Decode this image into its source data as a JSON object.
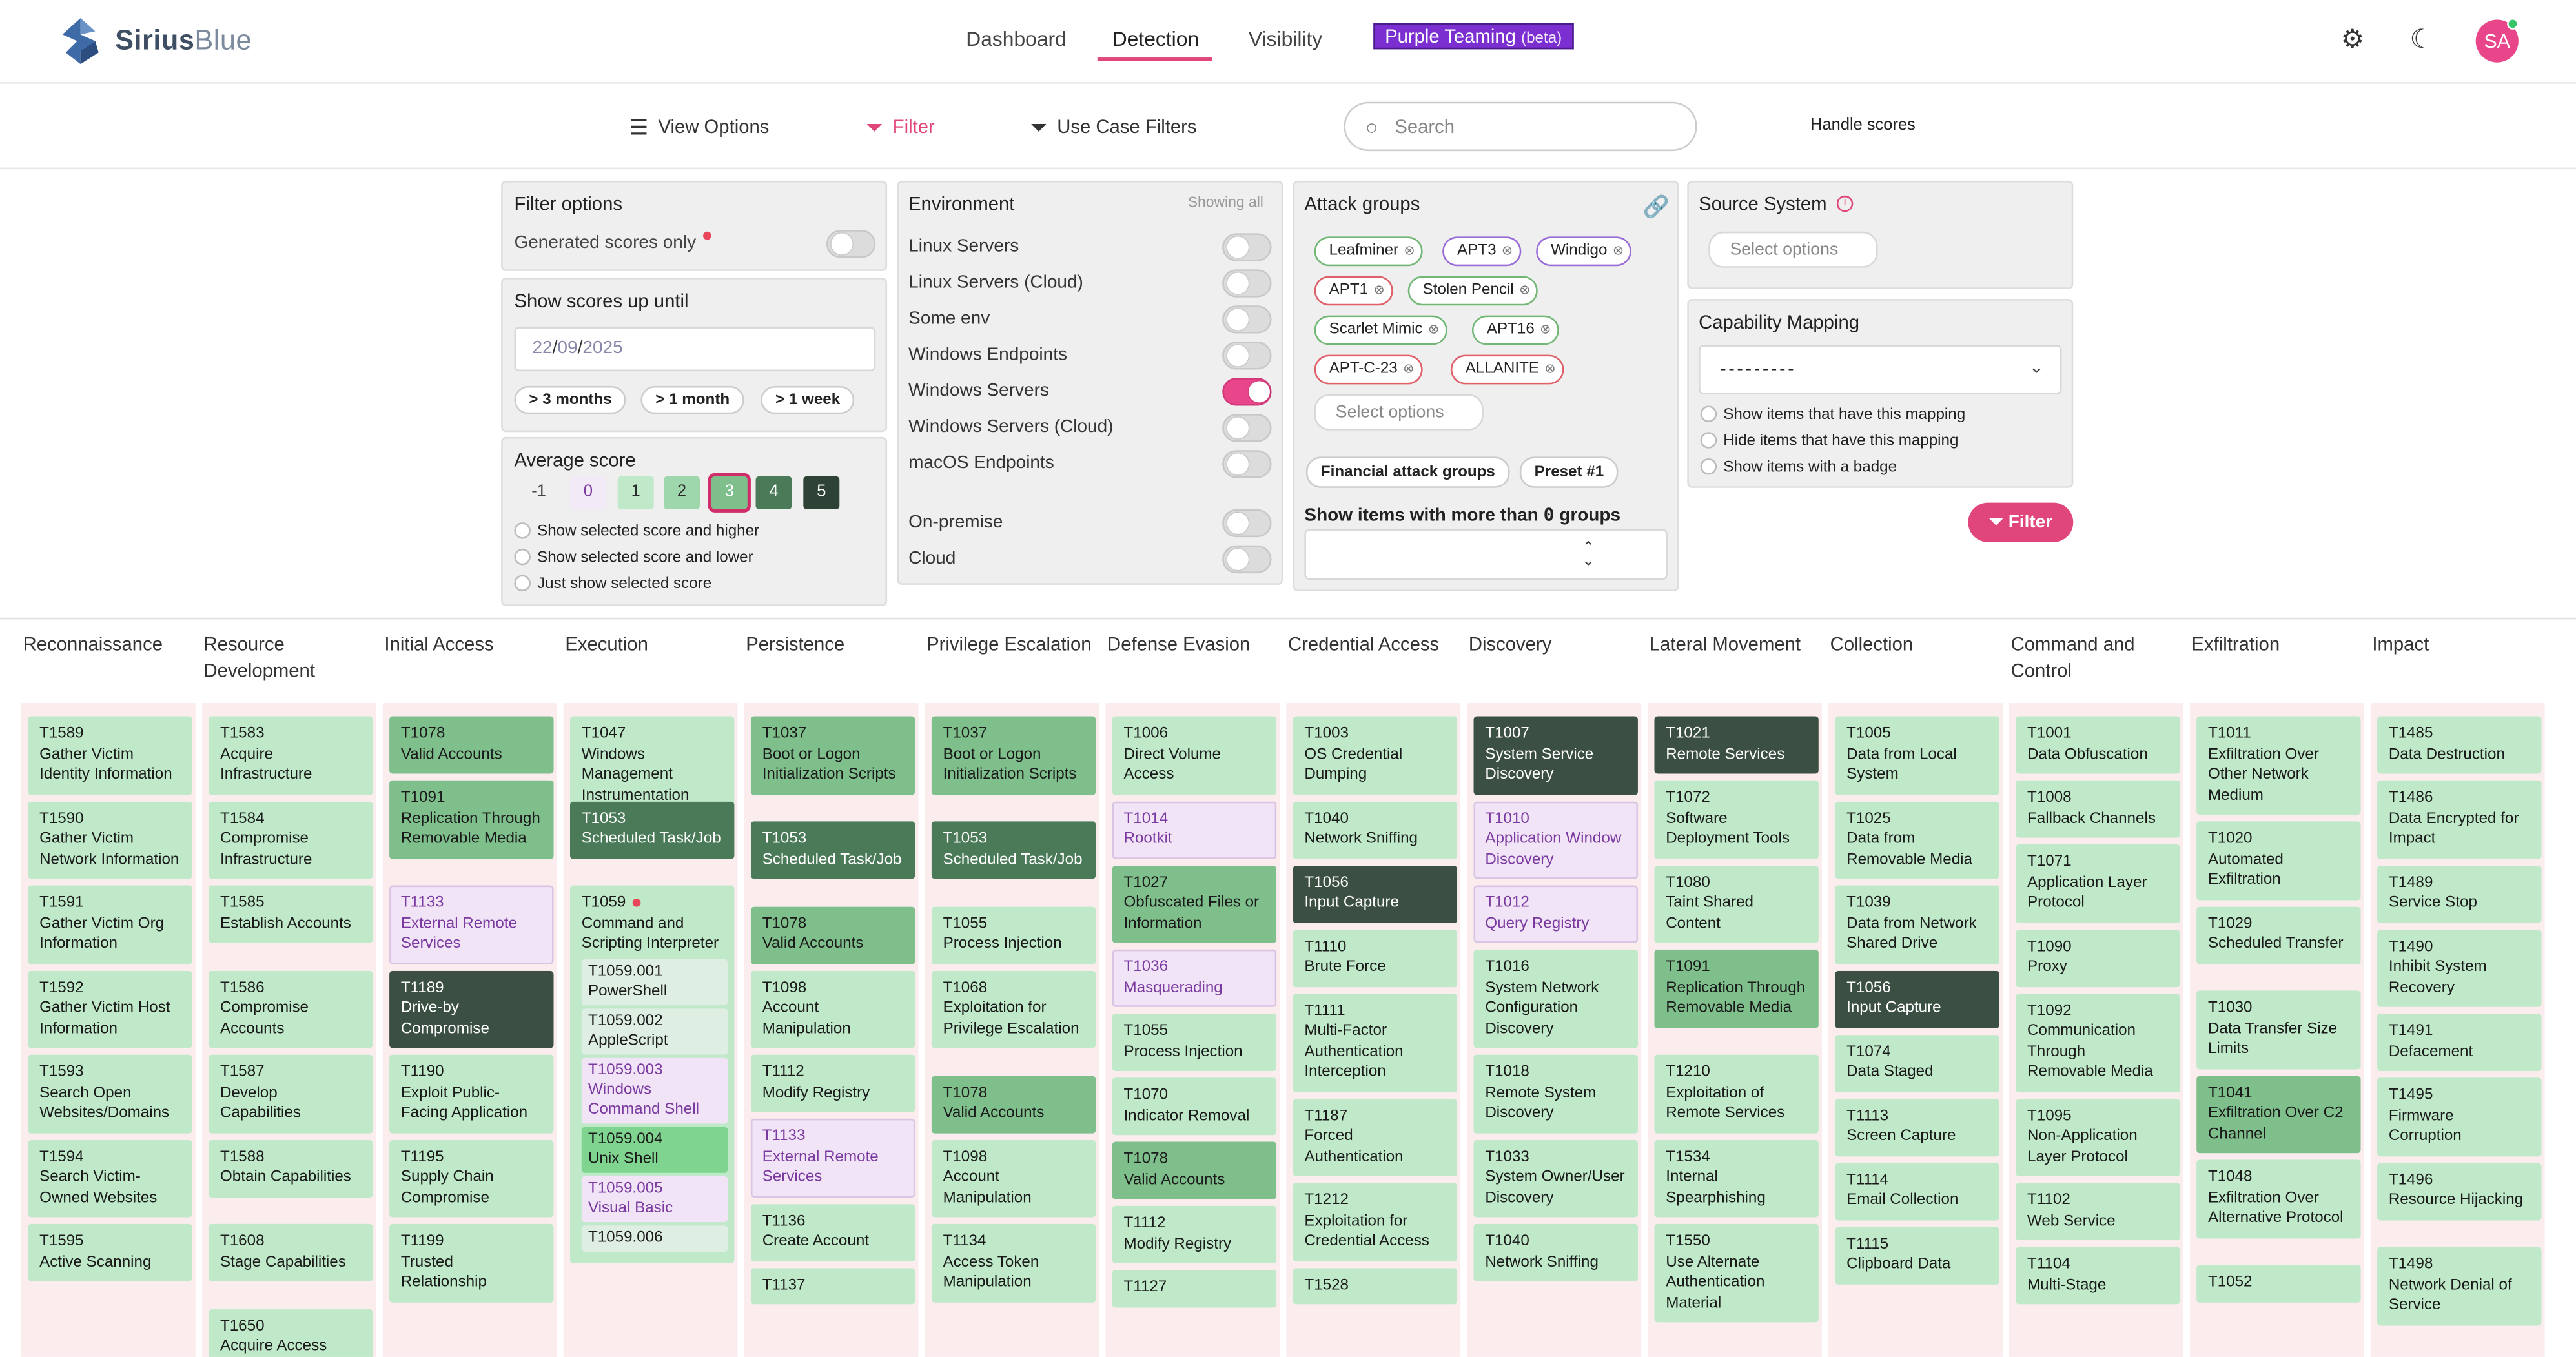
{
  "app": {
    "brand_name": "SiriusBlue",
    "brand_bold": "Sirius",
    "brand_light": "Blue"
  },
  "nav": {
    "items": [
      "Dashboard",
      "Detection",
      "Visibility"
    ],
    "active": "Detection",
    "purple_label": "Purple Teaming",
    "purple_badge": "(beta)"
  },
  "header_icons": {
    "settings": "gear-icon",
    "theme": "moon-icon"
  },
  "user": {
    "initials": "SA"
  },
  "toolbar": {
    "view_options": "View Options",
    "filter": "Filter",
    "use_case_filters": "Use Case Filters",
    "search_placeholder": "Search",
    "handle_scores": "Handle scores"
  },
  "filter_options": {
    "title": "Filter options",
    "generated_only": "Generated scores only"
  },
  "show_until": {
    "title": "Show scores up until",
    "date_day": "22",
    "date_month": "09",
    "date_year": "2025",
    "buttons": [
      "> 3 months",
      "> 1 month",
      "> 1 week"
    ]
  },
  "average_score": {
    "title": "Average score",
    "scores": [
      "-1",
      "0",
      "1",
      "2",
      "3",
      "4",
      "5"
    ],
    "selected": "3",
    "options": [
      "Show selected score and higher",
      "Show selected score and lower",
      "Just show selected score"
    ]
  },
  "environment": {
    "title": "Environment",
    "showing": "Showing all",
    "items": [
      "Linux Servers",
      "Linux Servers (Cloud)",
      "Some env",
      "Windows Endpoints",
      "Windows Servers",
      "Windows Servers (Cloud)",
      "macOS Endpoints"
    ],
    "enabled": "Windows Servers",
    "location_items": [
      "On-premise",
      "Cloud"
    ]
  },
  "attack_groups": {
    "title": "Attack groups",
    "chips": [
      "Leafminer",
      "APT3",
      "Windigo",
      "APT1",
      "Stolen Pencil",
      "Scarlet Mimic",
      "APT16",
      "APT-C-23",
      "ALLANITE"
    ],
    "select_placeholder": "Select options",
    "presets": [
      "Financial attack groups",
      "Preset #1"
    ],
    "more_than_label": "Show items with more than",
    "more_than_value": "0",
    "more_than_suffix": "groups"
  },
  "source_system": {
    "title": "Source System",
    "placeholder": "Select options"
  },
  "capability_mapping": {
    "title": "Capability Mapping",
    "value": "---------",
    "options": [
      "Show items that have this mapping",
      "Hide items that have this mapping",
      "Show items with a badge"
    ],
    "filter_button": "Filter"
  },
  "colors": {
    "accent": "#e0457b",
    "purple": "#7b2fd0",
    "tier0": "#bfe9c9",
    "tier1": "#7fbf8c",
    "tier2": "#4a7a57",
    "tier3": "#3c4f43",
    "pending": "#f1e4f6"
  },
  "matrix": {
    "tactics": [
      {
        "name": "Reconnaissance",
        "cards": [
          {
            "id": "T1589",
            "name": "Gather Victim Identity Information",
            "tier": "c0"
          },
          {
            "id": "T1590",
            "name": "Gather Victim Network Information",
            "tier": "c0"
          },
          {
            "id": "T1591",
            "name": "Gather Victim Org Information",
            "tier": "c0"
          },
          {
            "id": "T1592",
            "name": "Gather Victim Host Information",
            "tier": "c0"
          },
          {
            "id": "T1593",
            "name": "Search Open Websites/Domains",
            "tier": "c0"
          },
          {
            "id": "T1594",
            "name": "Search Victim-Owned Websites",
            "tier": "c0"
          },
          {
            "id": "T1595",
            "name": "Active Scanning",
            "tier": "c0"
          }
        ]
      },
      {
        "name": "Resource Development",
        "cards": [
          {
            "id": "T1583",
            "name": "Acquire Infrastructure",
            "tier": "c0"
          },
          {
            "id": "T1584",
            "name": "Compromise Infrastructure",
            "tier": "c0"
          },
          {
            "id": "T1585",
            "name": "Establish Accounts",
            "tier": "c0"
          },
          {
            "id": "T1586",
            "name": "Compromise Accounts",
            "tier": "c0"
          },
          {
            "id": "T1587",
            "name": "Develop Capabilities",
            "tier": "c0"
          },
          {
            "id": "T1588",
            "name": "Obtain Capabilities",
            "tier": "c0"
          },
          {
            "id": "T1608",
            "name": "Stage Capabilities",
            "tier": "c0"
          },
          {
            "id": "T1650",
            "name": "Acquire Access",
            "tier": "c0"
          }
        ]
      },
      {
        "name": "Initial Access",
        "cards": [
          {
            "id": "T1078",
            "name": "Valid Accounts",
            "tier": "c1"
          },
          {
            "id": "T1091",
            "name": "Replication Through Removable Media",
            "tier": "c1"
          },
          {
            "id": "T1133",
            "name": "External Remote Services",
            "tier": "cp"
          },
          {
            "id": "T1189",
            "name": "Drive-by Compromise",
            "tier": "c3"
          },
          {
            "id": "T1190",
            "name": "Exploit Public-Facing Application",
            "tier": "c0"
          },
          {
            "id": "T1195",
            "name": "Supply Chain Compromise",
            "tier": "c0"
          },
          {
            "id": "T1199",
            "name": "Trusted Relationship",
            "tier": "c0"
          }
        ]
      },
      {
        "name": "Execution",
        "cards": [
          {
            "id": "T1047",
            "name": "Windows Management Instrumentation",
            "tier": "c0"
          },
          {
            "id": "T1053",
            "name": "Scheduled Task/Job",
            "tier": "c2"
          },
          {
            "id": "T1059",
            "name": "Command and Scripting Interpreter",
            "tier": "c0",
            "dot": true,
            "subs": [
              {
                "id": "T1059.001",
                "name": "PowerShell",
                "tier": "c0"
              },
              {
                "id": "T1059.002",
                "name": "AppleScript",
                "tier": "c0"
              },
              {
                "id": "T1059.003",
                "name": "Windows Command Shell",
                "tier": "cp"
              },
              {
                "id": "T1059.004",
                "name": "Unix Shell",
                "tier": "c1"
              },
              {
                "id": "T1059.005",
                "name": "Visual Basic",
                "tier": "cp"
              },
              {
                "id": "T1059.006",
                "name": "",
                "tier": "c0"
              }
            ]
          }
        ]
      },
      {
        "name": "Persistence",
        "cards": [
          {
            "id": "T1037",
            "name": "Boot or Logon Initialization Scripts",
            "tier": "c1"
          },
          {
            "id": "T1053",
            "name": "Scheduled Task/Job",
            "tier": "c2"
          },
          {
            "id": "T1078",
            "name": "Valid Accounts",
            "tier": "c1"
          },
          {
            "id": "T1098",
            "name": "Account Manipulation",
            "tier": "c0"
          },
          {
            "id": "T1112",
            "name": "Modify Registry",
            "tier": "c0"
          },
          {
            "id": "T1133",
            "name": "External Remote Services",
            "tier": "cp"
          },
          {
            "id": "T1136",
            "name": "Create Account",
            "tier": "c0"
          },
          {
            "id": "T1137",
            "name": "",
            "tier": "c0"
          }
        ]
      },
      {
        "name": "Privilege Escalation",
        "cards": [
          {
            "id": "T1037",
            "name": "Boot or Logon Initialization Scripts",
            "tier": "c1"
          },
          {
            "id": "T1053",
            "name": "Scheduled Task/Job",
            "tier": "c2"
          },
          {
            "id": "T1055",
            "name": "Process Injection",
            "tier": "c0"
          },
          {
            "id": "T1068",
            "name": "Exploitation for Privilege Escalation",
            "tier": "c0"
          },
          {
            "id": "T1078",
            "name": "Valid Accounts",
            "tier": "c1"
          },
          {
            "id": "T1098",
            "name": "Account Manipulation",
            "tier": "c0"
          },
          {
            "id": "T1134",
            "name": "Access Token Manipulation",
            "tier": "c0"
          }
        ]
      },
      {
        "name": "Defense Evasion",
        "cards": [
          {
            "id": "T1006",
            "name": "Direct Volume Access",
            "tier": "c0"
          },
          {
            "id": "T1014",
            "name": "Rootkit",
            "tier": "cp"
          },
          {
            "id": "T1027",
            "name": "Obfuscated Files or Information",
            "tier": "c1"
          },
          {
            "id": "T1036",
            "name": "Masquerading",
            "tier": "cp"
          },
          {
            "id": "T1055",
            "name": "Process Injection",
            "tier": "c0"
          },
          {
            "id": "T1070",
            "name": "Indicator Removal",
            "tier": "c0"
          },
          {
            "id": "T1078",
            "name": "Valid Accounts",
            "tier": "c1"
          },
          {
            "id": "T1112",
            "name": "Modify Registry",
            "tier": "c0"
          },
          {
            "id": "T1127",
            "name": "",
            "tier": "c0"
          }
        ]
      },
      {
        "name": "Credential Access",
        "cards": [
          {
            "id": "T1003",
            "name": "OS Credential Dumping",
            "tier": "c0"
          },
          {
            "id": "T1040",
            "name": "Network Sniffing",
            "tier": "c0"
          },
          {
            "id": "T1056",
            "name": "Input Capture",
            "tier": "c3"
          },
          {
            "id": "T1110",
            "name": "Brute Force",
            "tier": "c0"
          },
          {
            "id": "T1111",
            "name": "Multi-Factor Authentication Interception",
            "tier": "c0"
          },
          {
            "id": "T1187",
            "name": "Forced Authentication",
            "tier": "c0"
          },
          {
            "id": "T1212",
            "name": "Exploitation for Credential Access",
            "tier": "c0"
          },
          {
            "id": "T1528",
            "name": "",
            "tier": "c0"
          }
        ]
      },
      {
        "name": "Discovery",
        "cards": [
          {
            "id": "T1007",
            "name": "System Service Discovery",
            "tier": "c3"
          },
          {
            "id": "T1010",
            "name": "Application Window Discovery",
            "tier": "cp"
          },
          {
            "id": "T1012",
            "name": "Query Registry",
            "tier": "cp"
          },
          {
            "id": "T1016",
            "name": "System Network Configuration Discovery",
            "tier": "c0"
          },
          {
            "id": "T1018",
            "name": "Remote System Discovery",
            "tier": "c0"
          },
          {
            "id": "T1033",
            "name": "System Owner/User Discovery",
            "tier": "c0"
          },
          {
            "id": "T1040",
            "name": "Network Sniffing",
            "tier": "c0"
          }
        ]
      },
      {
        "name": "Lateral Movement",
        "cards": [
          {
            "id": "T1021",
            "name": "Remote Services",
            "tier": "c3"
          },
          {
            "id": "T1072",
            "name": "Software Deployment Tools",
            "tier": "c0"
          },
          {
            "id": "T1080",
            "name": "Taint Shared Content",
            "tier": "c0"
          },
          {
            "id": "T1091",
            "name": "Replication Through Removable Media",
            "tier": "c1"
          },
          {
            "id": "T1210",
            "name": "Exploitation of Remote Services",
            "tier": "c0"
          },
          {
            "id": "T1534",
            "name": "Internal Spearphishing",
            "tier": "c0"
          },
          {
            "id": "T1550",
            "name": "Use Alternate Authentication Material",
            "tier": "c0"
          }
        ]
      },
      {
        "name": "Collection",
        "cards": [
          {
            "id": "T1005",
            "name": "Data from Local System",
            "tier": "c0"
          },
          {
            "id": "T1025",
            "name": "Data from Removable Media",
            "tier": "c0"
          },
          {
            "id": "T1039",
            "name": "Data from Network Shared Drive",
            "tier": "c0"
          },
          {
            "id": "T1056",
            "name": "Input Capture",
            "tier": "c3"
          },
          {
            "id": "T1074",
            "name": "Data Staged",
            "tier": "c0"
          },
          {
            "id": "T1113",
            "name": "Screen Capture",
            "tier": "c0"
          },
          {
            "id": "T1114",
            "name": "Email Collection",
            "tier": "c0"
          },
          {
            "id": "T1115",
            "name": "Clipboard Data",
            "tier": "c0"
          }
        ]
      },
      {
        "name": "Command and Control",
        "cards": [
          {
            "id": "T1001",
            "name": "Data Obfuscation",
            "tier": "c0"
          },
          {
            "id": "T1008",
            "name": "Fallback Channels",
            "tier": "c0"
          },
          {
            "id": "T1071",
            "name": "Application Layer Protocol",
            "tier": "c0"
          },
          {
            "id": "T1090",
            "name": "Proxy",
            "tier": "c0"
          },
          {
            "id": "T1092",
            "name": "Communication Through Removable Media",
            "tier": "c0"
          },
          {
            "id": "T1095",
            "name": "Non-Application Layer Protocol",
            "tier": "c0"
          },
          {
            "id": "T1102",
            "name": "Web Service",
            "tier": "c0"
          },
          {
            "id": "T1104",
            "name": "Multi-Stage",
            "tier": "c0"
          }
        ]
      },
      {
        "name": "Exfiltration",
        "cards": [
          {
            "id": "T1011",
            "name": "Exfiltration Over Other Network Medium",
            "tier": "c0"
          },
          {
            "id": "T1020",
            "name": "Automated Exfiltration",
            "tier": "c0"
          },
          {
            "id": "T1029",
            "name": "Scheduled Transfer",
            "tier": "c0"
          },
          {
            "id": "T1030",
            "name": "Data Transfer Size Limits",
            "tier": "c0"
          },
          {
            "id": "T1041",
            "name": "Exfiltration Over C2 Channel",
            "tier": "c1"
          },
          {
            "id": "T1048",
            "name": "Exfiltration Over Alternative Protocol",
            "tier": "c0"
          },
          {
            "id": "T1052",
            "name": "",
            "tier": "c0"
          }
        ]
      },
      {
        "name": "Impact",
        "cards": [
          {
            "id": "T1485",
            "name": "Data Destruction",
            "tier": "c0"
          },
          {
            "id": "T1486",
            "name": "Data Encrypted for Impact",
            "tier": "c0"
          },
          {
            "id": "T1489",
            "name": "Service Stop",
            "tier": "c0"
          },
          {
            "id": "T1490",
            "name": "Inhibit System Recovery",
            "tier": "c0"
          },
          {
            "id": "T1491",
            "name": "Defacement",
            "tier": "c0"
          },
          {
            "id": "T1495",
            "name": "Firmware Corruption",
            "tier": "c0"
          },
          {
            "id": "T1496",
            "name": "Resource Hijacking",
            "tier": "c0"
          },
          {
            "id": "T1498",
            "name": "Network Denial of Service",
            "tier": "c0"
          }
        ]
      }
    ]
  }
}
